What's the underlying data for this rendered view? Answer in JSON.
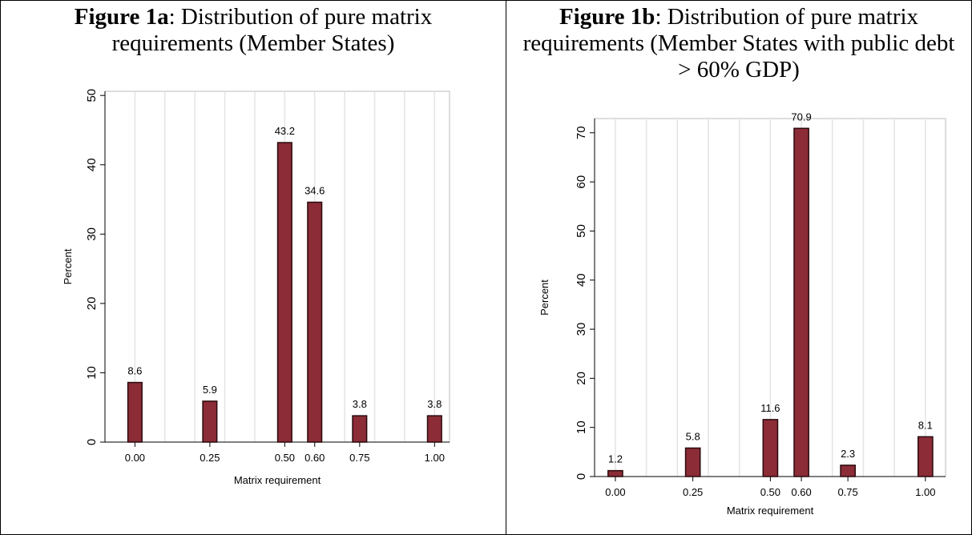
{
  "chart_data": [
    {
      "type": "bar",
      "figure_label": "Figure 1a",
      "title": ": Distribution of pure matrix requirements (Member States)",
      "x": [
        0,
        0.25,
        0.5,
        0.6,
        0.75,
        1.0
      ],
      "values": [
        8.6,
        5.9,
        43.2,
        34.6,
        3.8,
        3.8
      ],
      "color": "#8b2c36",
      "xlim": [
        -0.1,
        1.05
      ],
      "ylim": [
        0,
        50.6
      ],
      "xticks": [
        {
          "value": 0,
          "label": "0.00"
        },
        {
          "value": 0.25,
          "label": "0.25"
        },
        {
          "value": 0.5,
          "label": "0.50"
        },
        {
          "value": 0.6,
          "label": "0.60"
        },
        {
          "value": 0.75,
          "label": "0.75"
        },
        {
          "value": 1.0,
          "label": "1.00"
        }
      ],
      "xgrid": [
        0,
        0.1,
        0.2,
        0.3,
        0.4,
        0.5,
        0.6,
        0.7,
        0.8,
        0.9,
        1.0
      ],
      "yticks": [
        0,
        10,
        20,
        30,
        40,
        50
      ],
      "xlabel": "Matrix requirement",
      "ylabel": "Percent"
    },
    {
      "type": "bar",
      "figure_label": "Figure 1b",
      "title": ": Distribution of pure matrix requirements (Member States with public debt > 60% GDP)",
      "x": [
        0,
        0.25,
        0.5,
        0.6,
        0.75,
        1.0
      ],
      "values": [
        1.2,
        5.8,
        11.6,
        70.9,
        2.3,
        8.1
      ],
      "color": "#8b2c36",
      "xlim": [
        -0.067,
        1.065
      ],
      "ylim": [
        0,
        72.9
      ],
      "xticks": [
        {
          "value": 0,
          "label": "0.00"
        },
        {
          "value": 0.25,
          "label": "0.25"
        },
        {
          "value": 0.5,
          "label": "0.50"
        },
        {
          "value": 0.6,
          "label": "0.60"
        },
        {
          "value": 0.75,
          "label": "0.75"
        },
        {
          "value": 1.0,
          "label": "1.00"
        }
      ],
      "xgrid": [
        0,
        0.1,
        0.2,
        0.3,
        0.4,
        0.5,
        0.6,
        0.7,
        0.8,
        0.9,
        1.0
      ],
      "yticks": [
        0,
        10,
        20,
        30,
        40,
        50,
        60,
        70
      ],
      "xlabel": "Matrix requirement",
      "ylabel": "Percent"
    }
  ]
}
